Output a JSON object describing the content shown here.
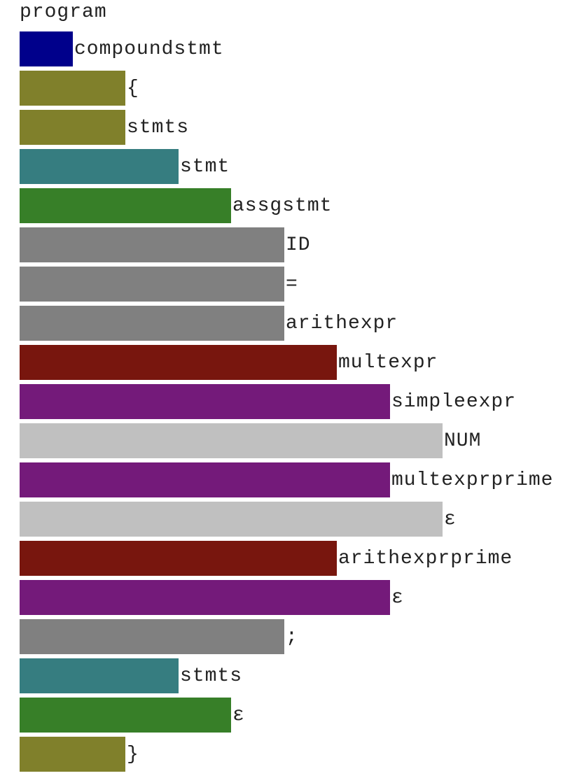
{
  "tree": {
    "root_label": "program",
    "nodes": [
      {
        "label": "compoundstmt",
        "depth": 1
      },
      {
        "label": "{",
        "depth": 2
      },
      {
        "label": "stmts",
        "depth": 2
      },
      {
        "label": "stmt",
        "depth": 3
      },
      {
        "label": "assgstmt",
        "depth": 4
      },
      {
        "label": "ID",
        "depth": 5
      },
      {
        "label": "=",
        "depth": 5
      },
      {
        "label": "arithexpr",
        "depth": 5
      },
      {
        "label": "multexpr",
        "depth": 6
      },
      {
        "label": "simpleexpr",
        "depth": 7
      },
      {
        "label": "NUM",
        "depth": 8
      },
      {
        "label": "multexprprime",
        "depth": 7
      },
      {
        "label": "ε",
        "depth": 8
      },
      {
        "label": "arithexprprime",
        "depth": 6
      },
      {
        "label": "ε",
        "depth": 7
      },
      {
        "label": ";",
        "depth": 5
      },
      {
        "label": "stmts",
        "depth": 3
      },
      {
        "label": "ε",
        "depth": 4
      },
      {
        "label": "}",
        "depth": 2
      }
    ],
    "depth_colors": {
      "1": "#00008b",
      "2": "#80802b",
      "3": "#367d80",
      "4": "#377f28",
      "5": "#808080",
      "6": "#78160e",
      "7": "#741a7a",
      "8": "#c0c0c0"
    }
  }
}
